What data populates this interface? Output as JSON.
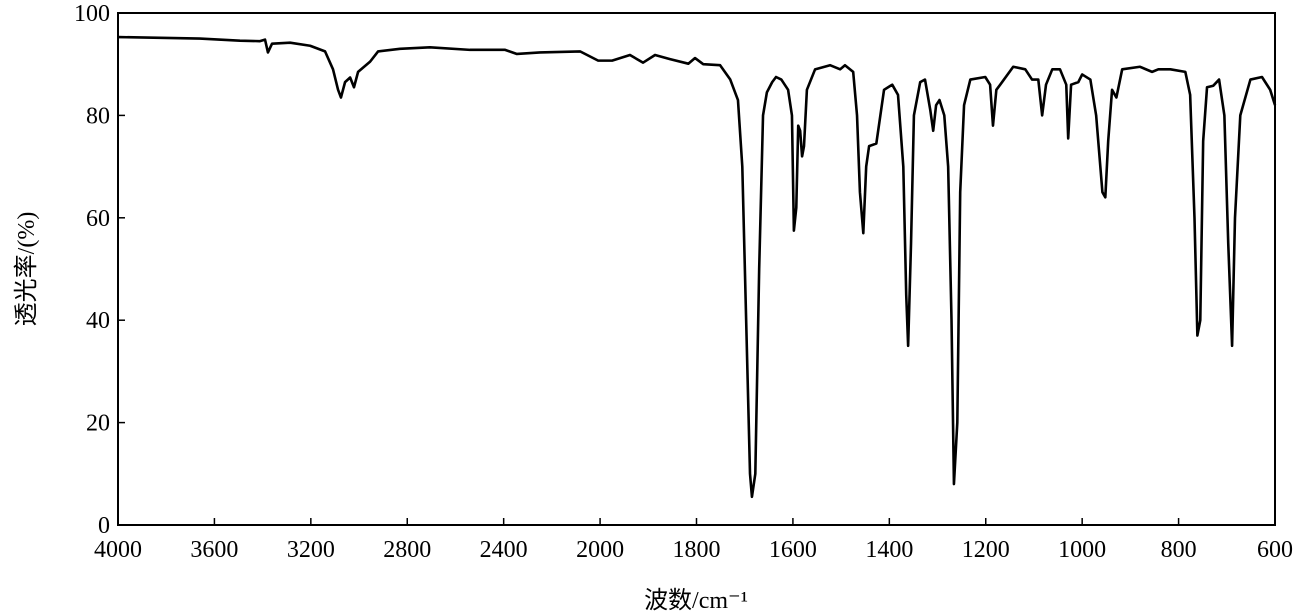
{
  "chart_data": {
    "type": "line",
    "x_label": "波数/cm⁻¹",
    "y_label": "透光率/(%)",
    "xlim": [
      4000,
      600
    ],
    "ylim": [
      0,
      100
    ],
    "xticks": [
      4000,
      3600,
      3200,
      2800,
      2400,
      2000,
      1800,
      1600,
      1400,
      1200,
      1000,
      800,
      600
    ],
    "yticks": [
      0,
      20,
      40,
      60,
      80,
      100
    ],
    "grid": false,
    "series": [
      {
        "color": "#000000",
        "x": [
          4000,
          3660,
          3494,
          3411,
          3390,
          3378,
          3361,
          3286,
          3203,
          3141,
          3108,
          3087,
          3075,
          3058,
          3037,
          3021,
          3004,
          2954,
          2921,
          2830,
          2706,
          2540,
          2394,
          2345,
          2249,
          2083,
          2008,
          1975,
          1938,
          1911,
          1886,
          1855,
          1817,
          1803,
          1786,
          1751,
          1730,
          1714,
          1705,
          1697,
          1689,
          1685,
          1678,
          1670,
          1662,
          1654,
          1643,
          1635,
          1624,
          1610,
          1602,
          1598,
          1593,
          1589,
          1585,
          1581,
          1577,
          1571,
          1554,
          1523,
          1502,
          1492,
          1475,
          1467,
          1461,
          1454,
          1448,
          1442,
          1427,
          1411,
          1394,
          1382,
          1371,
          1365,
          1361,
          1355,
          1349,
          1336,
          1326,
          1315,
          1309,
          1303,
          1296,
          1286,
          1278,
          1271,
          1266,
          1259,
          1253,
          1245,
          1232,
          1201,
          1191,
          1185,
          1178,
          1170,
          1143,
          1118,
          1104,
          1091,
          1083,
          1075,
          1062,
          1046,
          1033,
          1029,
          1023,
          1008,
          1000,
          983,
          971,
          958,
          952,
          946,
          938,
          929,
          917,
          880,
          855,
          842,
          817,
          786,
          776,
          767,
          761,
          755,
          749,
          741,
          728,
          716,
          705,
          697,
          689,
          683,
          672,
          651,
          627,
          610,
          600
        ],
        "values": [
          95.3,
          95.0,
          94.6,
          94.5,
          94.8,
          92.3,
          94.0,
          94.2,
          93.6,
          92.5,
          89,
          85,
          83.5,
          86.5,
          87.4,
          85.5,
          88.5,
          90.5,
          92.5,
          93,
          93.3,
          92.8,
          92.8,
          92.0,
          92.3,
          92.5,
          90.7,
          90.7,
          91.8,
          90.3,
          91.8,
          91.0,
          90.1,
          91.2,
          90.0,
          89.8,
          87,
          83,
          70,
          40,
          10,
          5.5,
          10,
          50,
          80,
          84.5,
          86.5,
          87.5,
          87,
          85,
          80,
          57.5,
          62,
          78,
          77,
          72,
          74,
          85,
          89,
          89.8,
          89,
          89.8,
          88.5,
          80,
          65,
          57,
          70,
          74,
          74.5,
          85,
          86,
          84,
          70,
          45,
          35,
          55,
          80,
          86.5,
          87,
          81,
          77,
          82,
          83,
          80,
          70,
          40,
          8,
          20,
          65,
          82,
          87,
          87.5,
          86,
          78,
          85,
          86,
          89.5,
          89,
          87,
          87,
          80,
          86,
          89,
          89,
          86,
          75.5,
          86,
          86.5,
          88,
          87,
          80,
          65,
          64,
          75,
          85,
          83.5,
          89,
          89.5,
          88.5,
          89,
          89,
          88.5,
          84,
          60,
          37,
          40,
          75,
          85.5,
          85.8,
          87,
          80,
          55,
          35,
          60,
          80,
          87,
          87.5,
          85,
          82
        ]
      }
    ]
  }
}
